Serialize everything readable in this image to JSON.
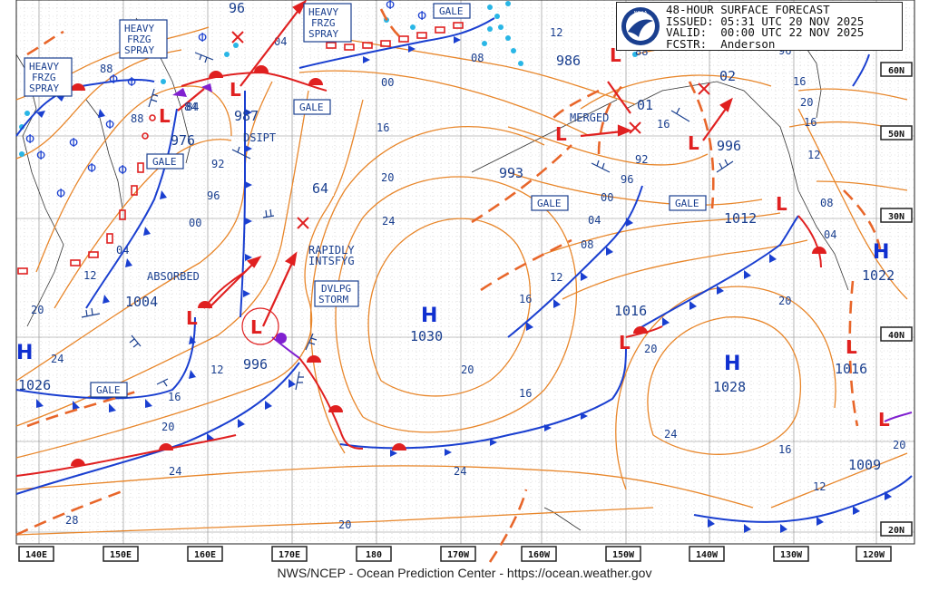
{
  "header": {
    "title": "48-HOUR SURFACE FORECAST",
    "issued_label": "ISSUED:",
    "issued": "05:31 UTC 20 NOV 2025",
    "valid_label": "VALID:",
    "valid": "00:00 UTC 22 NOV 2025",
    "fcstr_label": "FCSTR:",
    "fcstr": "Anderson",
    "logo": "noaa-logo"
  },
  "footer": "NWS/NCEP - Ocean Prediction Center - https://ocean.weather.gov",
  "longitudes": [
    "140E",
    "150E",
    "160E",
    "170E",
    "180",
    "170W",
    "160W",
    "150W",
    "140W",
    "130W",
    "120W"
  ],
  "latitudes": [
    "60N",
    "50N",
    "40N",
    "30N",
    "20N"
  ],
  "colors": {
    "isobar": "#e8862a",
    "cold_front": "#1a3fd0",
    "warm_front": "#e02020",
    "occluded": "#8020d0",
    "ice": "#29b6e6",
    "text": "#1a3f8f"
  },
  "systems": [
    {
      "type": "H",
      "pressure": "1026"
    },
    {
      "type": "L",
      "pressure": "976"
    },
    {
      "type": "L",
      "pressure": "987"
    },
    {
      "type": "L",
      "pressure": "1004"
    },
    {
      "type": "L",
      "pressure": "996"
    },
    {
      "type": "H",
      "pressure": "1030"
    },
    {
      "type": "L",
      "pressure": "993"
    },
    {
      "type": "L",
      "pressure": "986"
    },
    {
      "type": "L",
      "pressure": "01"
    },
    {
      "type": "L",
      "pressure": "02"
    },
    {
      "type": "L",
      "pressure": "996"
    },
    {
      "type": "L",
      "pressure": "1012"
    },
    {
      "type": "L",
      "pressure": "1016"
    },
    {
      "type": "H",
      "pressure": "1028"
    },
    {
      "type": "H",
      "pressure": "1022"
    },
    {
      "type": "L",
      "pressure": "1016"
    },
    {
      "type": "L",
      "pressure": "1009"
    }
  ],
  "labels": {
    "heavy_frzg_spray_1": [
      "HEAVY",
      "FRZG",
      "SPRAY"
    ],
    "heavy_frzg_spray_2": [
      "HEAVY",
      "FRZG",
      "SPRAY"
    ],
    "heavy_frzg_spray_3": [
      "HEAVY",
      "FRZG",
      "SPRAY"
    ],
    "gale": "GALE",
    "dsipt": "DSIPT",
    "absorbed": "ABSORBED",
    "rapidly_intsfyg": [
      "RAPIDLY",
      "INTSFYG"
    ],
    "dvlpg_storm": [
      "DVLPG",
      "STORM"
    ],
    "merged": "MERGED",
    "wave_96": "96",
    "wave_64": "64",
    "wave_88": "88",
    "wave_84": "84"
  },
  "isobar_values": [
    "96",
    "04",
    "88",
    "84",
    "92",
    "96",
    "00",
    "04",
    "12",
    "20",
    "24",
    "12",
    "16",
    "20",
    "24",
    "28",
    "24",
    "20",
    "16",
    "20",
    "16",
    "24",
    "20",
    "16",
    "12",
    "08",
    "04",
    "00",
    "96",
    "92",
    "00",
    "08",
    "12",
    "16",
    "20",
    "24",
    "16",
    "12",
    "20",
    "04",
    "08",
    "12",
    "16",
    "20",
    "16",
    "20",
    "12",
    "00",
    "04",
    "08",
    "96",
    "00"
  ]
}
